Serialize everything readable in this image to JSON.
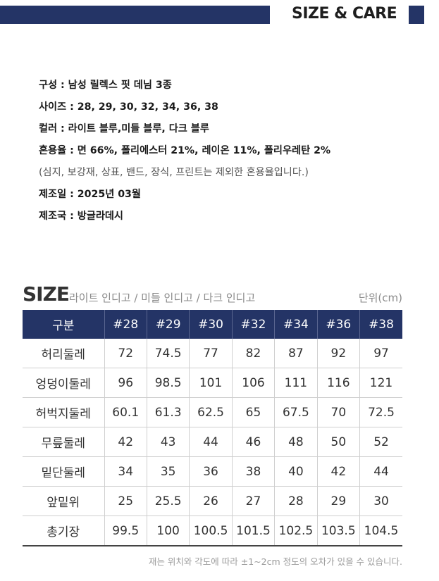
{
  "header": {
    "title": "SIZE & CARE",
    "accent_color": "#243466"
  },
  "info": {
    "lines": [
      "구성 : 남성 릴렉스 핏 데님 3종",
      "사이즈 : 28, 29, 30, 32, 34, 36, 38",
      "컬러 : 라이트 블루,미들 블루, 다크 블루",
      "혼용율 : 면 66%, 폴리에스터 21%, 레이온 11%, 폴리우레탄 2%",
      "(심지, 보강재, 상표, 밴드, 장식, 프린트는 제외한 혼용율입니다.)",
      "제조일 : 2025년 03월",
      "제조국 : 방글라데시"
    ]
  },
  "size_section": {
    "title": "SIZE",
    "subtitle": "라이트 인디고 / 미들 인디고 / 다크 인디고",
    "unit": "단위(cm)"
  },
  "table": {
    "headers": [
      "구분",
      "#28",
      "#29",
      "#30",
      "#32",
      "#34",
      "#36",
      "#38"
    ],
    "rows": [
      [
        "허리둘레",
        "72",
        "74.5",
        "77",
        "82",
        "87",
        "92",
        "97"
      ],
      [
        "엉덩이둘레",
        "96",
        "98.5",
        "101",
        "106",
        "111",
        "116",
        "121"
      ],
      [
        "허벅지둘레",
        "60.1",
        "61.3",
        "62.5",
        "65",
        "67.5",
        "70",
        "72.5"
      ],
      [
        "무릎둘레",
        "42",
        "43",
        "44",
        "46",
        "48",
        "50",
        "52"
      ],
      [
        "밑단둘레",
        "34",
        "35",
        "36",
        "38",
        "40",
        "42",
        "44"
      ],
      [
        "앞밑위",
        "25",
        "25.5",
        "26",
        "27",
        "28",
        "29",
        "30"
      ],
      [
        "총기장",
        "99.5",
        "100",
        "100.5",
        "101.5",
        "102.5",
        "103.5",
        "104.5"
      ]
    ]
  },
  "footnote": "재는 위치와 각도에 따라 ±1~2cm 정도의 오차가 있을 수 있습니다."
}
